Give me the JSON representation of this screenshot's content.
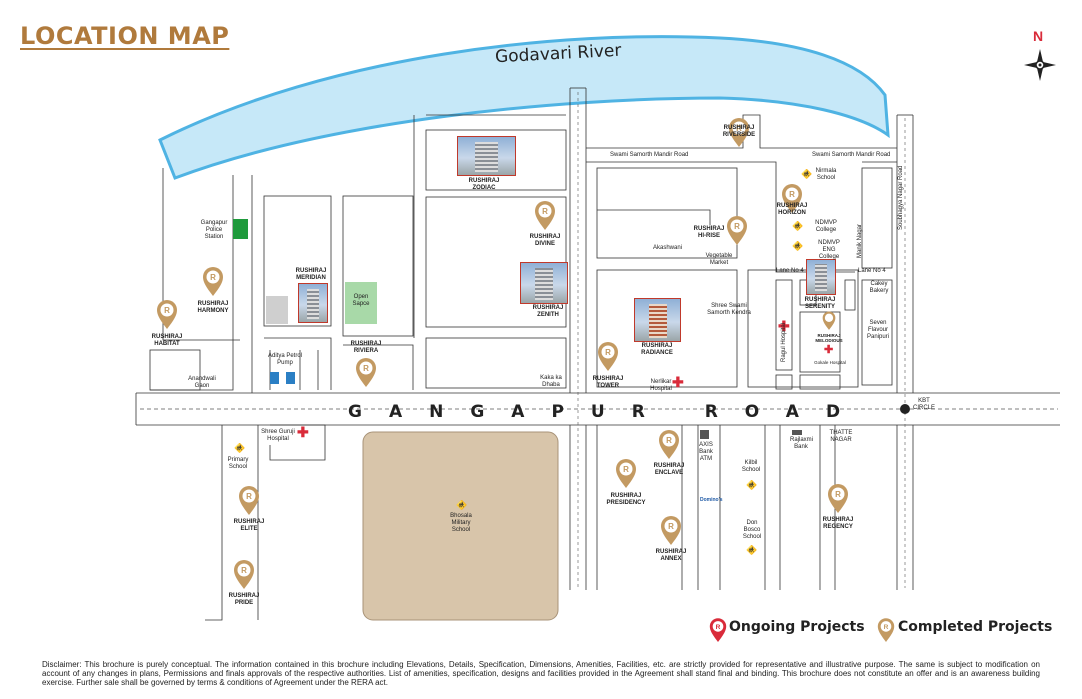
{
  "title": "LOCATION MAP",
  "compass": {
    "label": "N"
  },
  "river": {
    "name": "Godavari River"
  },
  "main_road": {
    "name": "GANGAPUR ROAD"
  },
  "roads": {
    "swami_samorth_1": "Swami Samorth Mandir Road",
    "swami_samorth_2": "Swami Samorth Mandir Road",
    "soubhagya": "Soubhagya Nagar Road",
    "akashwani": "Akashwani",
    "lane4_a": "Lane No 4",
    "lane4_b": "Lane No 4",
    "manik_nagar": "Manik Nagar",
    "kbt_circle": "KBT CIRCLE"
  },
  "projects": {
    "riverside": "RUSHIRAJ RIVERSIDE",
    "zodiac": "RUSHIRAJ ZODIAC",
    "divine": "RUSHIRAJ DIVINE",
    "zenith": "RUSHIRAJ ZENITH",
    "hirise": "RUSHIRAJ HI-RISE",
    "horizon": "RUSHIRAJ HORIZON",
    "serenity": "RUSHIRAJ SERENITY",
    "meridian": "RUSHIRAJ MERIDIAN",
    "harmony": "RUSHIRAJ HARMONY",
    "habitat": "RUSHIRAJ HABITAT",
    "riviera": "RUSHIRAJ RIVIERA",
    "radiance": "RUSHIRAJ RADIANCE",
    "tower": "RUSHIRAJ TOWER",
    "melodious": "RUSHIRAJ MELODIOUS",
    "enclave": "RUSHIRAJ ENCLAVE",
    "presidency": "RUSHIRAJ PRESIDENCY",
    "annex": "RUSHIRAJ ANNEX",
    "regency": "RUSHIRAJ REGENCY",
    "elite": "RUSHIRAJ ELITE",
    "pride": "RUSHIRAJ PRIDE"
  },
  "landmarks": {
    "police": "Gangapur Police Station",
    "open_space": "Open Sapce",
    "petrol_pump": "Aditya Petrol Pump",
    "anandwali": "Anandwali Gaon",
    "kaka_dhaba": "Kaka ka Dhaba",
    "nerlikar": "Nerlikar Hospital",
    "shree_swami": "Shree Swami Samorth Kendra",
    "vegetable": "Vegetable Market",
    "nirmala": "Nirmala School",
    "ndmvp_college": "NDMVP College",
    "ndmvp_eng": "NDMVP ENG College",
    "cakey": "Cakey Bakery",
    "seven_flavour": "Seven Flavour Panipuri",
    "ragul": "Ragul Hospital",
    "gokale": "Gokale Hospital",
    "shree_guruji": "Shree Guruji Hospital",
    "primary_school": "Primary School",
    "bhosala": "Bhosala Military School",
    "axis": "AXIS Bank ATM",
    "dominos": "Domino's",
    "kilbil": "Kilbil School",
    "don_bosco": "Don Bosco School",
    "rajlaxmi": "Rajlaxmi Bank",
    "thatte": "THATTE NAGAR"
  },
  "legend": {
    "ongoing": "Ongoing Projects",
    "completed": "Completed Projects"
  },
  "colors": {
    "title": "#b07a3c",
    "completed_pin": "#c39a62",
    "ongoing_pin": "#d92b3a",
    "river": "#c6e8f8",
    "river_edge": "#4fb3e3",
    "military": "#d8c5aa",
    "police": "#1f9a3c",
    "open_space": "#a8d9a8"
  },
  "disclaimer": "Disclaimer: This brochure is purely conceptual. The information contained in this brochure including Elevations, Details, Specification, Dimensions, Amenities, Facilities, etc. are strictly provided for representative and illustrative purpose. The same is subject to modification on account of any changes in plans, Permissions and finals approvals of the respective authorities. List of amenities, specification, designs and facilities provided in the Agreement shall stand final and binding. This brochure does not constitute an offer and is an awareness building exercise. Further sale shall be governed by terms & conditions of Agreement under the RERA act."
}
